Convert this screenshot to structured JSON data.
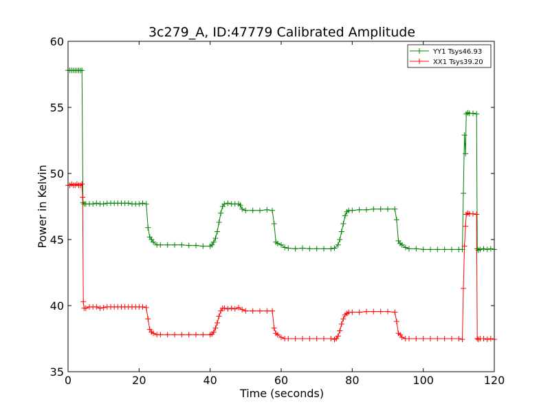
{
  "chart_data": {
    "type": "line",
    "title": "3c279_A, ID:47779 Calibrated Amplitude",
    "xlabel": "Time (seconds)",
    "ylabel": "Power in Kelvin",
    "xlim": [
      0,
      120
    ],
    "ylim": [
      35,
      60
    ],
    "xticks": [
      0,
      20,
      40,
      60,
      80,
      100,
      120
    ],
    "yticks": [
      35,
      40,
      45,
      50,
      55,
      60
    ],
    "grid": false,
    "legend_position": "top-right",
    "marker": "+",
    "series": [
      {
        "name": "YY1 Tsys46.93",
        "color": "#008000",
        "points": [
          [
            0.0,
            57.8
          ],
          [
            0.5,
            57.8
          ],
          [
            1.0,
            57.8
          ],
          [
            1.5,
            57.8
          ],
          [
            2.0,
            57.8
          ],
          [
            2.5,
            57.8
          ],
          [
            3.0,
            57.8
          ],
          [
            3.5,
            57.8
          ],
          [
            3.9,
            57.8
          ],
          [
            4.2,
            47.8
          ],
          [
            4.5,
            47.7
          ],
          [
            5.0,
            47.7
          ],
          [
            6.0,
            47.7
          ],
          [
            7.0,
            47.7
          ],
          [
            8.0,
            47.75
          ],
          [
            9.0,
            47.7
          ],
          [
            10.0,
            47.7
          ],
          [
            11.0,
            47.75
          ],
          [
            12.0,
            47.75
          ],
          [
            13.0,
            47.75
          ],
          [
            14.0,
            47.75
          ],
          [
            15.0,
            47.75
          ],
          [
            16.0,
            47.75
          ],
          [
            17.0,
            47.75
          ],
          [
            18.0,
            47.7
          ],
          [
            19.0,
            47.7
          ],
          [
            20.0,
            47.7
          ],
          [
            21.0,
            47.75
          ],
          [
            22.0,
            47.7
          ],
          [
            22.5,
            45.9
          ],
          [
            23.0,
            45.2
          ],
          [
            23.5,
            45.0
          ],
          [
            24.0,
            44.8
          ],
          [
            25.0,
            44.6
          ],
          [
            26.0,
            44.6
          ],
          [
            28.0,
            44.6
          ],
          [
            30.0,
            44.6
          ],
          [
            32.0,
            44.6
          ],
          [
            34.0,
            44.55
          ],
          [
            36.0,
            44.55
          ],
          [
            38.0,
            44.5
          ],
          [
            40.0,
            44.5
          ],
          [
            40.5,
            44.6
          ],
          [
            41.0,
            44.8
          ],
          [
            41.5,
            45.1
          ],
          [
            42.0,
            45.6
          ],
          [
            42.5,
            46.3
          ],
          [
            43.0,
            47.0
          ],
          [
            43.5,
            47.5
          ],
          [
            44.0,
            47.7
          ],
          [
            45.0,
            47.75
          ],
          [
            46.0,
            47.7
          ],
          [
            47.0,
            47.7
          ],
          [
            48.0,
            47.7
          ],
          [
            48.5,
            47.6
          ],
          [
            49.0,
            47.3
          ],
          [
            50.0,
            47.2
          ],
          [
            52.0,
            47.2
          ],
          [
            54.0,
            47.2
          ],
          [
            56.0,
            47.25
          ],
          [
            57.5,
            47.2
          ],
          [
            58.0,
            46.2
          ],
          [
            58.5,
            44.8
          ],
          [
            59.0,
            44.7
          ],
          [
            60.0,
            44.6
          ],
          [
            61.0,
            44.4
          ],
          [
            62.0,
            44.35
          ],
          [
            64.0,
            44.3
          ],
          [
            66.0,
            44.35
          ],
          [
            68.0,
            44.3
          ],
          [
            70.0,
            44.3
          ],
          [
            72.0,
            44.3
          ],
          [
            74.0,
            44.3
          ],
          [
            75.0,
            44.35
          ],
          [
            76.0,
            44.6
          ],
          [
            76.5,
            45.0
          ],
          [
            77.0,
            45.6
          ],
          [
            77.5,
            46.2
          ],
          [
            78.0,
            46.8
          ],
          [
            78.5,
            47.1
          ],
          [
            79.0,
            47.2
          ],
          [
            80.0,
            47.2
          ],
          [
            82.0,
            47.25
          ],
          [
            84.0,
            47.25
          ],
          [
            86.0,
            47.3
          ],
          [
            88.0,
            47.3
          ],
          [
            90.0,
            47.3
          ],
          [
            92.0,
            47.3
          ],
          [
            92.5,
            46.5
          ],
          [
            93.0,
            44.9
          ],
          [
            93.5,
            44.7
          ],
          [
            94.0,
            44.6
          ],
          [
            95.0,
            44.4
          ],
          [
            96.0,
            44.3
          ],
          [
            98.0,
            44.3
          ],
          [
            100.0,
            44.25
          ],
          [
            102.0,
            44.25
          ],
          [
            104.0,
            44.25
          ],
          [
            106.0,
            44.25
          ],
          [
            108.0,
            44.25
          ],
          [
            110.0,
            44.25
          ],
          [
            111.0,
            44.25
          ],
          [
            111.3,
            48.5
          ],
          [
            111.6,
            52.9
          ],
          [
            111.9,
            51.5
          ],
          [
            112.1,
            54.5
          ],
          [
            112.5,
            54.6
          ],
          [
            113.0,
            54.55
          ],
          [
            114.0,
            54.55
          ],
          [
            115.0,
            54.5
          ],
          [
            115.2,
            44.3
          ],
          [
            115.5,
            44.2
          ],
          [
            116.0,
            44.25
          ],
          [
            117.0,
            44.3
          ],
          [
            118.0,
            44.25
          ],
          [
            119.0,
            44.3
          ],
          [
            120.0,
            44.25
          ]
        ]
      },
      {
        "name": "XX1 Tsys39.20",
        "color": "#ff0000",
        "points": [
          [
            0.0,
            49.1
          ],
          [
            0.5,
            49.1
          ],
          [
            1.0,
            49.2
          ],
          [
            1.5,
            49.1
          ],
          [
            2.0,
            49.1
          ],
          [
            2.5,
            49.2
          ],
          [
            3.0,
            49.1
          ],
          [
            3.5,
            49.1
          ],
          [
            3.9,
            49.2
          ],
          [
            4.1,
            48.2
          ],
          [
            4.3,
            40.3
          ],
          [
            4.5,
            39.8
          ],
          [
            5.0,
            39.8
          ],
          [
            6.0,
            39.9
          ],
          [
            7.0,
            39.9
          ],
          [
            8.0,
            39.9
          ],
          [
            9.0,
            39.8
          ],
          [
            10.0,
            39.85
          ],
          [
            11.0,
            39.9
          ],
          [
            12.0,
            39.9
          ],
          [
            13.0,
            39.9
          ],
          [
            14.0,
            39.9
          ],
          [
            15.0,
            39.9
          ],
          [
            16.0,
            39.9
          ],
          [
            17.0,
            39.9
          ],
          [
            18.0,
            39.9
          ],
          [
            19.0,
            39.9
          ],
          [
            20.0,
            39.9
          ],
          [
            21.0,
            39.9
          ],
          [
            22.0,
            39.85
          ],
          [
            22.5,
            39.0
          ],
          [
            23.0,
            38.2
          ],
          [
            23.5,
            38.0
          ],
          [
            24.0,
            37.9
          ],
          [
            25.0,
            37.8
          ],
          [
            26.0,
            37.8
          ],
          [
            28.0,
            37.8
          ],
          [
            30.0,
            37.8
          ],
          [
            32.0,
            37.8
          ],
          [
            34.0,
            37.8
          ],
          [
            36.0,
            37.8
          ],
          [
            38.0,
            37.8
          ],
          [
            40.0,
            37.8
          ],
          [
            40.5,
            37.85
          ],
          [
            41.0,
            38.0
          ],
          [
            41.5,
            38.3
          ],
          [
            42.0,
            38.7
          ],
          [
            42.5,
            39.2
          ],
          [
            43.0,
            39.6
          ],
          [
            43.5,
            39.8
          ],
          [
            44.0,
            39.8
          ],
          [
            45.0,
            39.75
          ],
          [
            46.0,
            39.8
          ],
          [
            47.0,
            39.75
          ],
          [
            48.0,
            39.85
          ],
          [
            49.0,
            39.7
          ],
          [
            50.0,
            39.6
          ],
          [
            52.0,
            39.6
          ],
          [
            54.0,
            39.6
          ],
          [
            56.0,
            39.6
          ],
          [
            57.5,
            39.6
          ],
          [
            58.0,
            38.3
          ],
          [
            58.5,
            37.9
          ],
          [
            59.0,
            37.8
          ],
          [
            60.0,
            37.6
          ],
          [
            61.0,
            37.5
          ],
          [
            62.0,
            37.5
          ],
          [
            64.0,
            37.5
          ],
          [
            66.0,
            37.5
          ],
          [
            68.0,
            37.5
          ],
          [
            70.0,
            37.5
          ],
          [
            72.0,
            37.5
          ],
          [
            74.0,
            37.5
          ],
          [
            75.0,
            37.45
          ],
          [
            75.5,
            37.5
          ],
          [
            76.0,
            37.7
          ],
          [
            76.5,
            38.1
          ],
          [
            77.0,
            38.6
          ],
          [
            77.5,
            39.0
          ],
          [
            78.0,
            39.3
          ],
          [
            78.5,
            39.4
          ],
          [
            79.0,
            39.5
          ],
          [
            80.0,
            39.5
          ],
          [
            82.0,
            39.5
          ],
          [
            84.0,
            39.55
          ],
          [
            86.0,
            39.55
          ],
          [
            88.0,
            39.55
          ],
          [
            90.0,
            39.55
          ],
          [
            92.0,
            39.5
          ],
          [
            92.5,
            38.8
          ],
          [
            93.0,
            37.9
          ],
          [
            93.5,
            37.8
          ],
          [
            94.0,
            37.6
          ],
          [
            95.0,
            37.5
          ],
          [
            96.0,
            37.5
          ],
          [
            98.0,
            37.5
          ],
          [
            100.0,
            37.5
          ],
          [
            102.0,
            37.5
          ],
          [
            104.0,
            37.5
          ],
          [
            106.0,
            37.5
          ],
          [
            108.0,
            37.5
          ],
          [
            110.0,
            37.5
          ],
          [
            111.0,
            37.45
          ],
          [
            111.3,
            41.3
          ],
          [
            111.6,
            44.5
          ],
          [
            111.9,
            46.0
          ],
          [
            112.1,
            46.9
          ],
          [
            112.5,
            47.0
          ],
          [
            113.0,
            46.95
          ],
          [
            114.0,
            46.95
          ],
          [
            115.0,
            46.9
          ],
          [
            115.2,
            37.5
          ],
          [
            115.5,
            37.45
          ],
          [
            116.0,
            37.5
          ],
          [
            117.0,
            37.5
          ],
          [
            118.0,
            37.45
          ],
          [
            119.0,
            37.5
          ],
          [
            120.0,
            37.45
          ]
        ]
      }
    ]
  }
}
